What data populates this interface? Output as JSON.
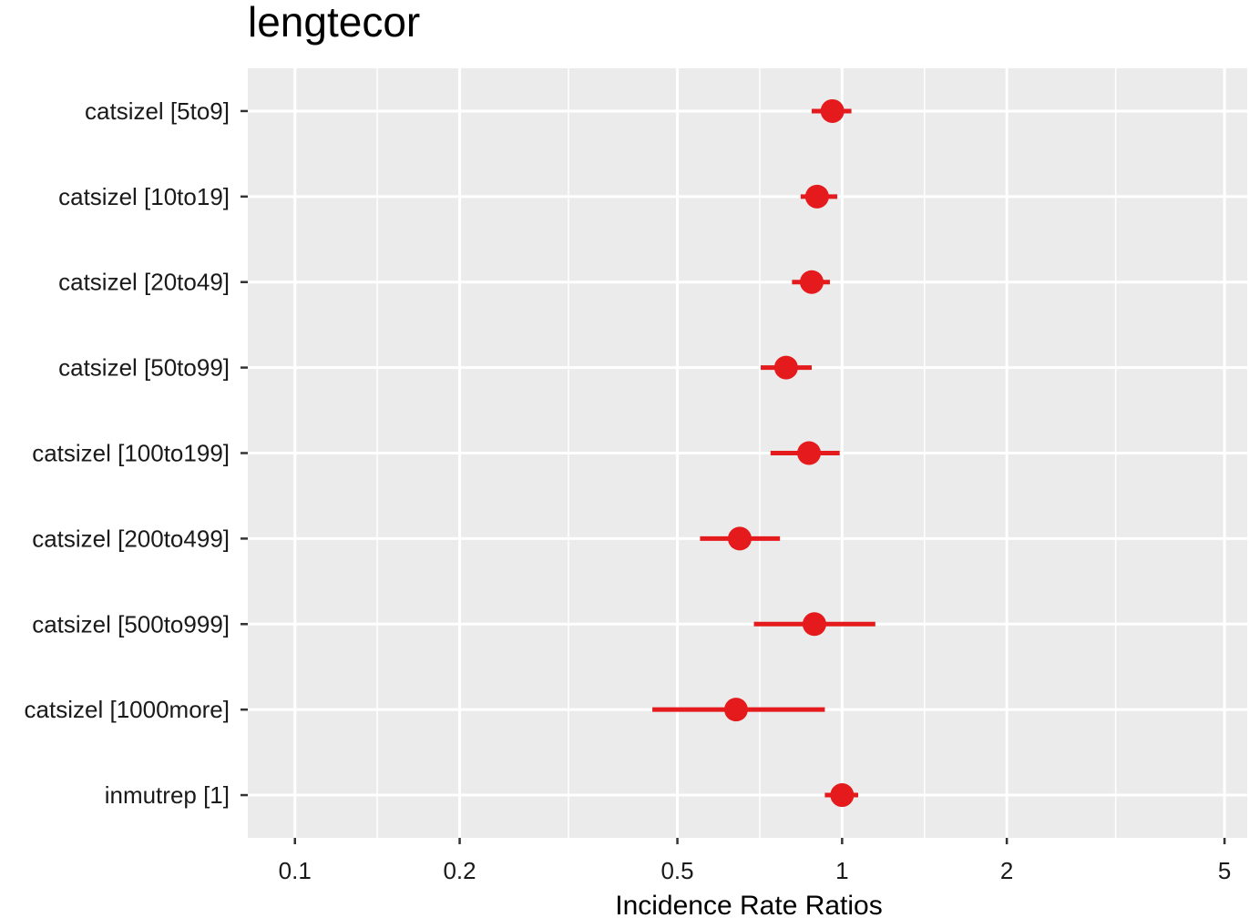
{
  "chart_data": {
    "type": "forest",
    "title": "lengtecor",
    "xlabel": "Incidence Rate Ratios",
    "xscale": "log10",
    "xlim": [
      0.082,
      5.5
    ],
    "xticks": [
      0.1,
      0.2,
      0.5,
      1,
      2,
      5
    ],
    "xtick_labels": [
      "0.1",
      "0.2",
      "0.5",
      "1",
      "2",
      "5"
    ],
    "x_minor_gridlines": [
      0.1414,
      0.3162,
      0.7071,
      1.4142,
      3.1623
    ],
    "grid": true,
    "point_color": "#E41A1C",
    "panel_color": "#EBEBEB",
    "terms": [
      {
        "label": "catsizel [5to9]",
        "estimate": 0.96,
        "ci_low": 0.88,
        "ci_high": 1.04
      },
      {
        "label": "catsizel [10to19]",
        "estimate": 0.9,
        "ci_low": 0.84,
        "ci_high": 0.98
      },
      {
        "label": "catsizel [20to49]",
        "estimate": 0.88,
        "ci_low": 0.81,
        "ci_high": 0.95
      },
      {
        "label": "catsizel [50to99]",
        "estimate": 0.79,
        "ci_low": 0.71,
        "ci_high": 0.88
      },
      {
        "label": "catsizel [100to199]",
        "estimate": 0.87,
        "ci_low": 0.74,
        "ci_high": 0.99
      },
      {
        "label": "catsizel [200to499]",
        "estimate": 0.65,
        "ci_low": 0.55,
        "ci_high": 0.77
      },
      {
        "label": "catsizel [500to999]",
        "estimate": 0.89,
        "ci_low": 0.69,
        "ci_high": 1.15
      },
      {
        "label": "catsizel [1000more]",
        "estimate": 0.64,
        "ci_low": 0.45,
        "ci_high": 0.93
      },
      {
        "label": "inmutrep [1]",
        "estimate": 1.0,
        "ci_low": 0.93,
        "ci_high": 1.07
      }
    ]
  }
}
